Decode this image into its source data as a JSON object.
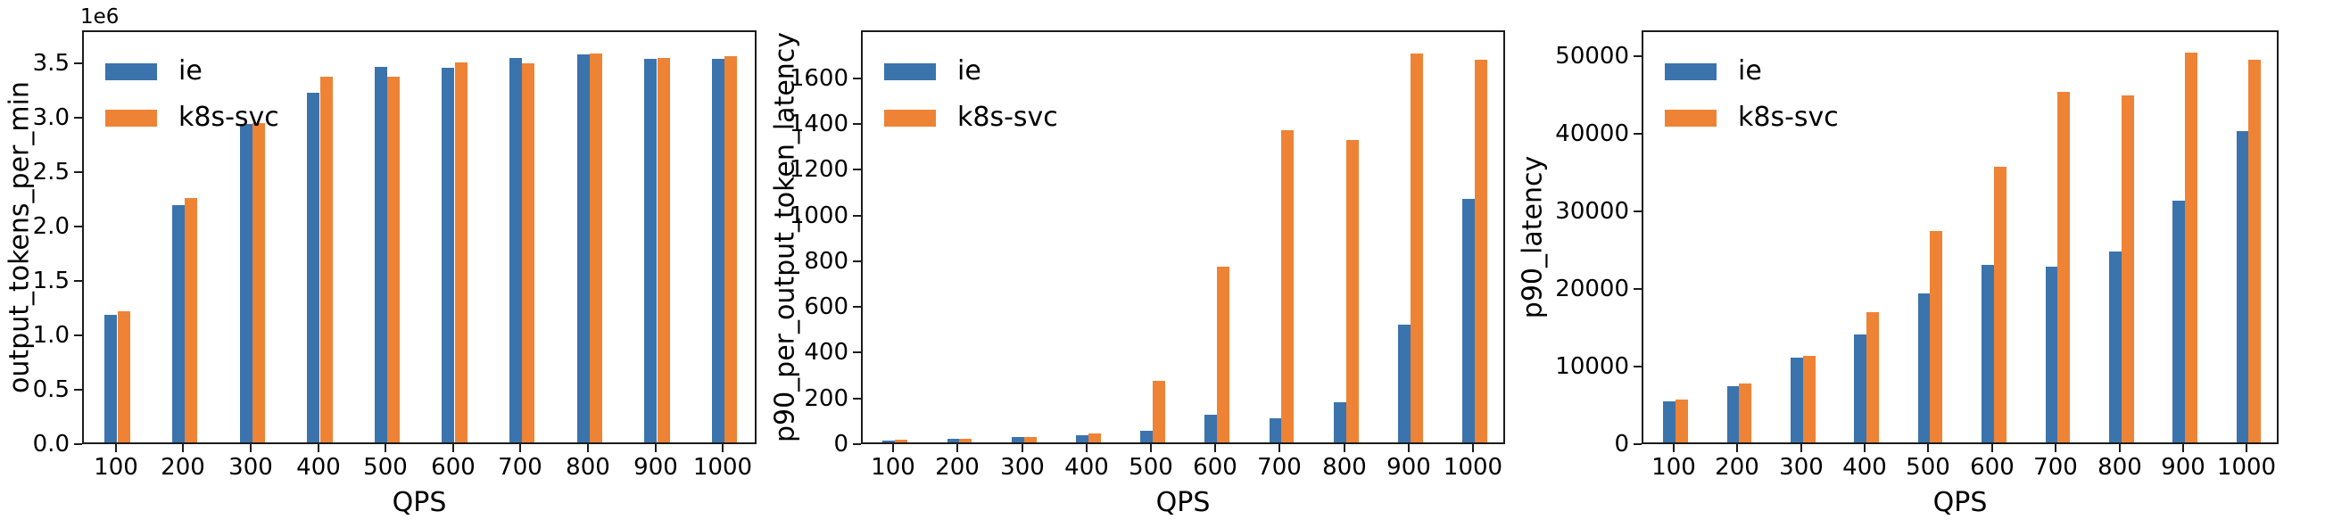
{
  "figure": {
    "background": "#ffffff",
    "spine_color": "#1c1c1c"
  },
  "series_colors": {
    "ie": "#3b73ad",
    "k8s_svc": "#ee8335"
  },
  "chart_data": [
    {
      "type": "bar",
      "title": "",
      "ylabel": "output_tokens_per_min",
      "xlabel": "QPS",
      "offset_text": "1e6",
      "grid": false,
      "legend_position": "upper-left",
      "legend_entries": [
        "ie",
        "k8s-svc"
      ],
      "categories": [
        "100",
        "200",
        "300",
        "400",
        "500",
        "600",
        "700",
        "800",
        "900",
        "1000"
      ],
      "series": [
        {
          "name": "ie",
          "color": "#3b73ad",
          "values": [
            1170000,
            2180000,
            2920000,
            3210000,
            3450000,
            3440000,
            3530000,
            3560000,
            3520000,
            3520000
          ]
        },
        {
          "name": "k8s-svc",
          "color": "#ee8335",
          "values": [
            1200000,
            2240000,
            2930000,
            3360000,
            3360000,
            3490000,
            3480000,
            3570000,
            3530000,
            3550000
          ]
        }
      ],
      "ylim": [
        0,
        3800000
      ],
      "yticks": [
        {
          "value": 0,
          "label": "0.0"
        },
        {
          "value": 500000,
          "label": "0.5"
        },
        {
          "value": 1000000,
          "label": "1.0"
        },
        {
          "value": 1500000,
          "label": "1.5"
        },
        {
          "value": 2000000,
          "label": "2.0"
        },
        {
          "value": 2500000,
          "label": "2.5"
        },
        {
          "value": 3000000,
          "label": "3.0"
        },
        {
          "value": 3500000,
          "label": "3.5"
        }
      ]
    },
    {
      "type": "bar",
      "title": "",
      "ylabel": "p90_per_output_token_latency",
      "xlabel": "QPS",
      "grid": false,
      "legend_position": "upper-left",
      "legend_entries": [
        "ie",
        "k8s-svc"
      ],
      "categories": [
        "100",
        "200",
        "300",
        "400",
        "500",
        "600",
        "700",
        "800",
        "900",
        "1000"
      ],
      "series": [
        {
          "name": "ie",
          "color": "#3b73ad",
          "values": [
            8,
            15,
            23,
            33,
            50,
            120,
            107,
            177,
            515,
            1065
          ]
        },
        {
          "name": "k8s-svc",
          "color": "#ee8335",
          "values": [
            10,
            17,
            25,
            38,
            270,
            770,
            1365,
            1322,
            1700,
            1675
          ]
        }
      ],
      "ylim": [
        0,
        1810
      ],
      "yticks": [
        {
          "value": 0,
          "label": "0"
        },
        {
          "value": 200,
          "label": "200"
        },
        {
          "value": 400,
          "label": "400"
        },
        {
          "value": 600,
          "label": "600"
        },
        {
          "value": 800,
          "label": "800"
        },
        {
          "value": 1000,
          "label": "1000"
        },
        {
          "value": 1200,
          "label": "1200"
        },
        {
          "value": 1400,
          "label": "1400"
        },
        {
          "value": 1600,
          "label": "1600"
        }
      ]
    },
    {
      "type": "bar",
      "title": "",
      "ylabel": "p90_latency",
      "xlabel": "QPS",
      "grid": false,
      "legend_position": "upper-left",
      "legend_entries": [
        "ie",
        "k8s-svc"
      ],
      "categories": [
        "100",
        "200",
        "300",
        "400",
        "500",
        "600",
        "700",
        "800",
        "900",
        "1000"
      ],
      "series": [
        {
          "name": "ie",
          "color": "#3b73ad",
          "values": [
            5300,
            7300,
            10900,
            13900,
            19200,
            22900,
            22700,
            24600,
            31200,
            40100
          ]
        },
        {
          "name": "k8s-svc",
          "color": "#ee8335",
          "values": [
            5500,
            7550,
            11100,
            16800,
            27200,
            35500,
            45200,
            44700,
            50300,
            49300
          ]
        }
      ],
      "ylim": [
        0,
        53360
      ],
      "yticks": [
        {
          "value": 0,
          "label": "0"
        },
        {
          "value": 10000,
          "label": "10000"
        },
        {
          "value": 20000,
          "label": "20000"
        },
        {
          "value": 30000,
          "label": "30000"
        },
        {
          "value": 40000,
          "label": "40000"
        },
        {
          "value": 50000,
          "label": "50000"
        }
      ]
    }
  ]
}
